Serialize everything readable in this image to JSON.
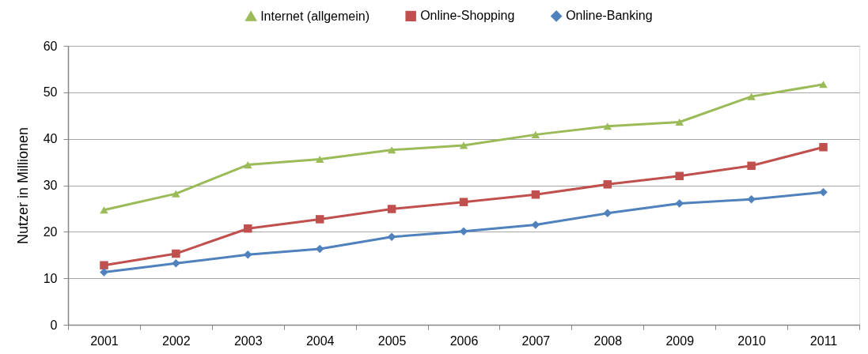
{
  "chart_data": {
    "type": "line",
    "ylabel": "Nutzer in Millionen",
    "categories": [
      "2001",
      "2002",
      "2003",
      "2004",
      "2005",
      "2006",
      "2007",
      "2008",
      "2009",
      "2010",
      "2011"
    ],
    "ylim": [
      0,
      60
    ],
    "yticks": [
      0,
      10,
      20,
      30,
      40,
      50,
      60
    ],
    "grid": "y",
    "legend": "top",
    "line_style": "solid",
    "series": [
      {
        "name": "Internet (allgemein)",
        "color": "#9bbb59",
        "marker": "triangle",
        "values": [
          24.7,
          28.2,
          34.4,
          35.6,
          37.6,
          38.6,
          40.9,
          42.7,
          43.6,
          49.1,
          51.7
        ]
      },
      {
        "name": "Online-Shopping",
        "color": "#c0504d",
        "marker": "square",
        "values": [
          12.8,
          15.3,
          20.7,
          22.7,
          24.9,
          26.4,
          28.0,
          30.2,
          32.0,
          34.2,
          38.2
        ]
      },
      {
        "name": "Online-Banking",
        "color": "#4f81bd",
        "marker": "diamond",
        "values": [
          11.3,
          13.2,
          15.1,
          16.3,
          18.9,
          20.1,
          21.5,
          24.0,
          26.1,
          27.0,
          28.5
        ]
      }
    ]
  }
}
